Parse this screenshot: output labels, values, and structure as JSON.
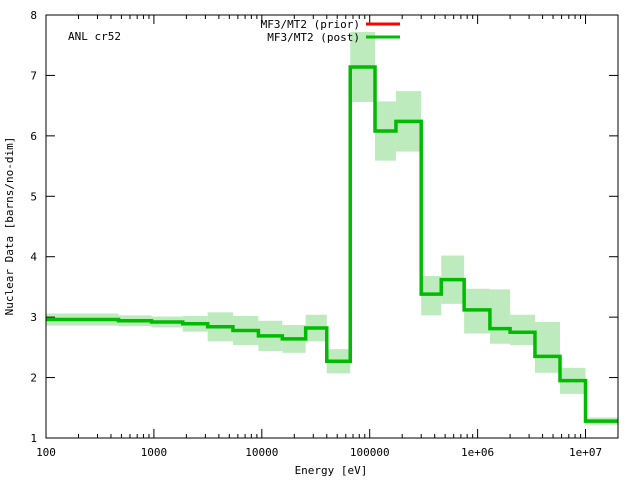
{
  "chart_data": {
    "type": "line",
    "annotation": "ANL cr52",
    "xlabel": "Energy [eV]",
    "ylabel": "Nuclear Data [barns/no-dim]",
    "xscale": "log",
    "xlim": [
      100,
      20000000
    ],
    "ylim": [
      1,
      8
    ],
    "xticks": [
      {
        "value": 100,
        "label": "100"
      },
      {
        "value": 1000,
        "label": "1000"
      },
      {
        "value": 10000,
        "label": "10000"
      },
      {
        "value": 100000,
        "label": "100000"
      },
      {
        "value": 1000000,
        "label": "1e+06"
      },
      {
        "value": 10000000,
        "label": "1e+07"
      }
    ],
    "yticks": [
      1,
      2,
      3,
      4,
      5,
      6,
      7,
      8
    ],
    "legend_position": "top-right",
    "series": [
      {
        "name": "MF3/MT2 (prior)",
        "color": "#ff0000",
        "style": "step",
        "x": [],
        "y": []
      },
      {
        "name": "MF3/MT2 (post)",
        "color": "#00bb00",
        "band_color": "#bdebbd",
        "style": "step",
        "bin_edges": [
          100,
          470,
          950,
          1850,
          3150,
          5400,
          9300,
          15500,
          25500,
          40000,
          66000,
          112000,
          175000,
          300000,
          460000,
          750000,
          1300000,
          2000000,
          3400000,
          5800000,
          10000000,
          20000000
        ],
        "values": [
          2.96,
          2.94,
          2.92,
          2.89,
          2.84,
          2.78,
          2.69,
          2.64,
          2.82,
          2.27,
          7.14,
          6.08,
          6.24,
          3.38,
          3.62,
          3.12,
          2.81,
          2.75,
          2.35,
          1.95,
          1.28
        ],
        "band_low": [
          2.86,
          2.85,
          2.83,
          2.76,
          2.6,
          2.54,
          2.44,
          2.41,
          2.6,
          2.07,
          6.56,
          5.59,
          5.74,
          3.03,
          3.22,
          2.73,
          2.56,
          2.54,
          2.08,
          1.73,
          1.22
        ],
        "band_high": [
          3.06,
          3.03,
          3.01,
          3.02,
          3.08,
          3.02,
          2.94,
          2.87,
          3.04,
          2.47,
          7.72,
          6.57,
          6.74,
          3.68,
          4.02,
          3.47,
          3.46,
          3.04,
          2.92,
          2.16,
          1.34
        ]
      }
    ]
  }
}
